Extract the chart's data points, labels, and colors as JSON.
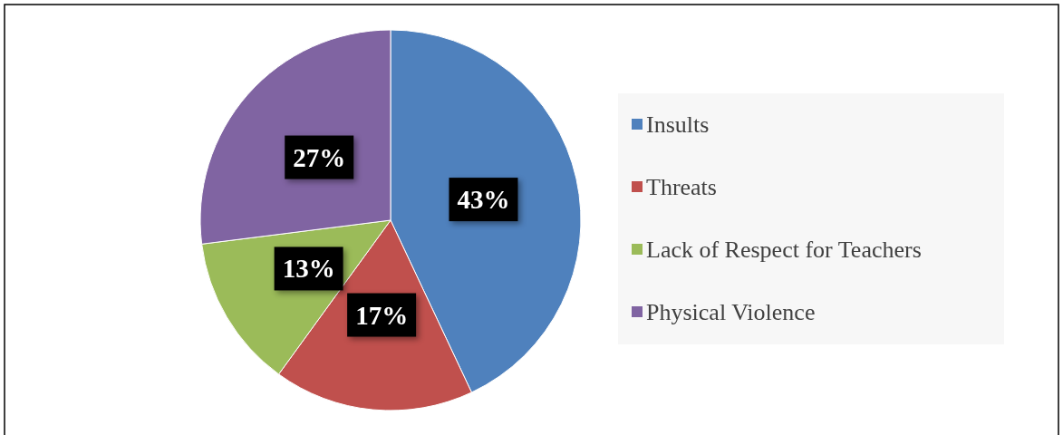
{
  "chart_data": {
    "type": "pie",
    "categories": [
      "Insults",
      "Threats",
      "Lack of Respect for Teachers",
      "Physical Violence"
    ],
    "values": [
      43,
      17,
      13,
      27
    ],
    "colors": [
      "#4f81bd",
      "#c0504d",
      "#9bbb59",
      "#8064a2"
    ],
    "value_labels": [
      "43%",
      "17%",
      "13%",
      "27%"
    ],
    "legend": "right"
  }
}
